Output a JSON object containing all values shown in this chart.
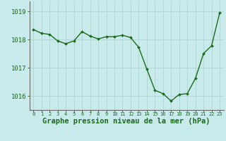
{
  "x": [
    0,
    1,
    2,
    3,
    4,
    5,
    6,
    7,
    8,
    9,
    10,
    11,
    12,
    13,
    14,
    15,
    16,
    17,
    18,
    19,
    20,
    21,
    22,
    23
  ],
  "y": [
    1018.35,
    1018.22,
    1018.18,
    1017.95,
    1017.85,
    1017.95,
    1018.28,
    1018.12,
    1018.02,
    1018.1,
    1018.1,
    1018.15,
    1018.07,
    1017.72,
    1016.95,
    1016.2,
    1016.08,
    1015.82,
    1016.05,
    1016.08,
    1016.62,
    1017.5,
    1017.78,
    1018.95
  ],
  "line_color": "#1a6b1a",
  "marker": "D",
  "marker_size": 2.0,
  "linewidth": 1.0,
  "bg_color": "#c8eaeb",
  "grid_color": "#b0d4d4",
  "xlabel": "Graphe pression niveau de la mer (hPa)",
  "xlabel_fontsize": 7.5,
  "xlabel_color": "#1a6b1a",
  "tick_color": "#1a6b1a",
  "ytick_labels": [
    1016,
    1017,
    1018,
    1019
  ],
  "xtick_labels": [
    "0",
    "1",
    "2",
    "3",
    "4",
    "5",
    "6",
    "7",
    "8",
    "9",
    "10",
    "11",
    "12",
    "13",
    "14",
    "15",
    "16",
    "17",
    "18",
    "19",
    "20",
    "21",
    "22",
    "23"
  ],
  "ylim": [
    1015.5,
    1019.35
  ],
  "xlim": [
    -0.5,
    23.5
  ]
}
